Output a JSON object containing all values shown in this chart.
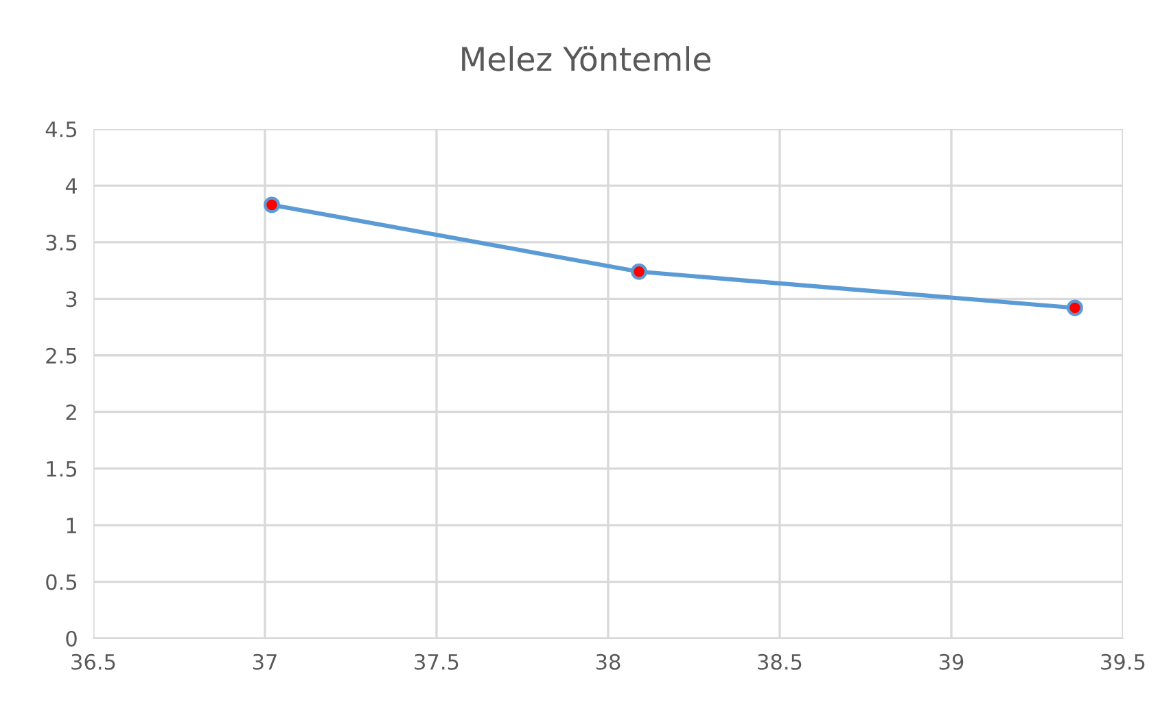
{
  "chart_data": {
    "type": "line",
    "title": "Melez Yöntemle",
    "series": [
      {
        "color": "#5b9bd5",
        "colors": [
          "#ff0000",
          "#ff0000",
          "#ff0000"
        ],
        "x": [
          37.02,
          38.09,
          39.36
        ],
        "values": [
          3.83,
          3.24,
          2.92
        ]
      }
    ],
    "xlim": [
      36.5,
      39.5
    ],
    "xticks": [
      36.5,
      37,
      37.5,
      38,
      38.5,
      39,
      39.5
    ],
    "ylim": [
      0,
      4.5
    ],
    "yticks": [
      0,
      0.5,
      1,
      1.5,
      2,
      2.5,
      3,
      3.5,
      4,
      4.5
    ],
    "grid": true,
    "marker": "circle",
    "line_style": "solid",
    "legend": false
  }
}
